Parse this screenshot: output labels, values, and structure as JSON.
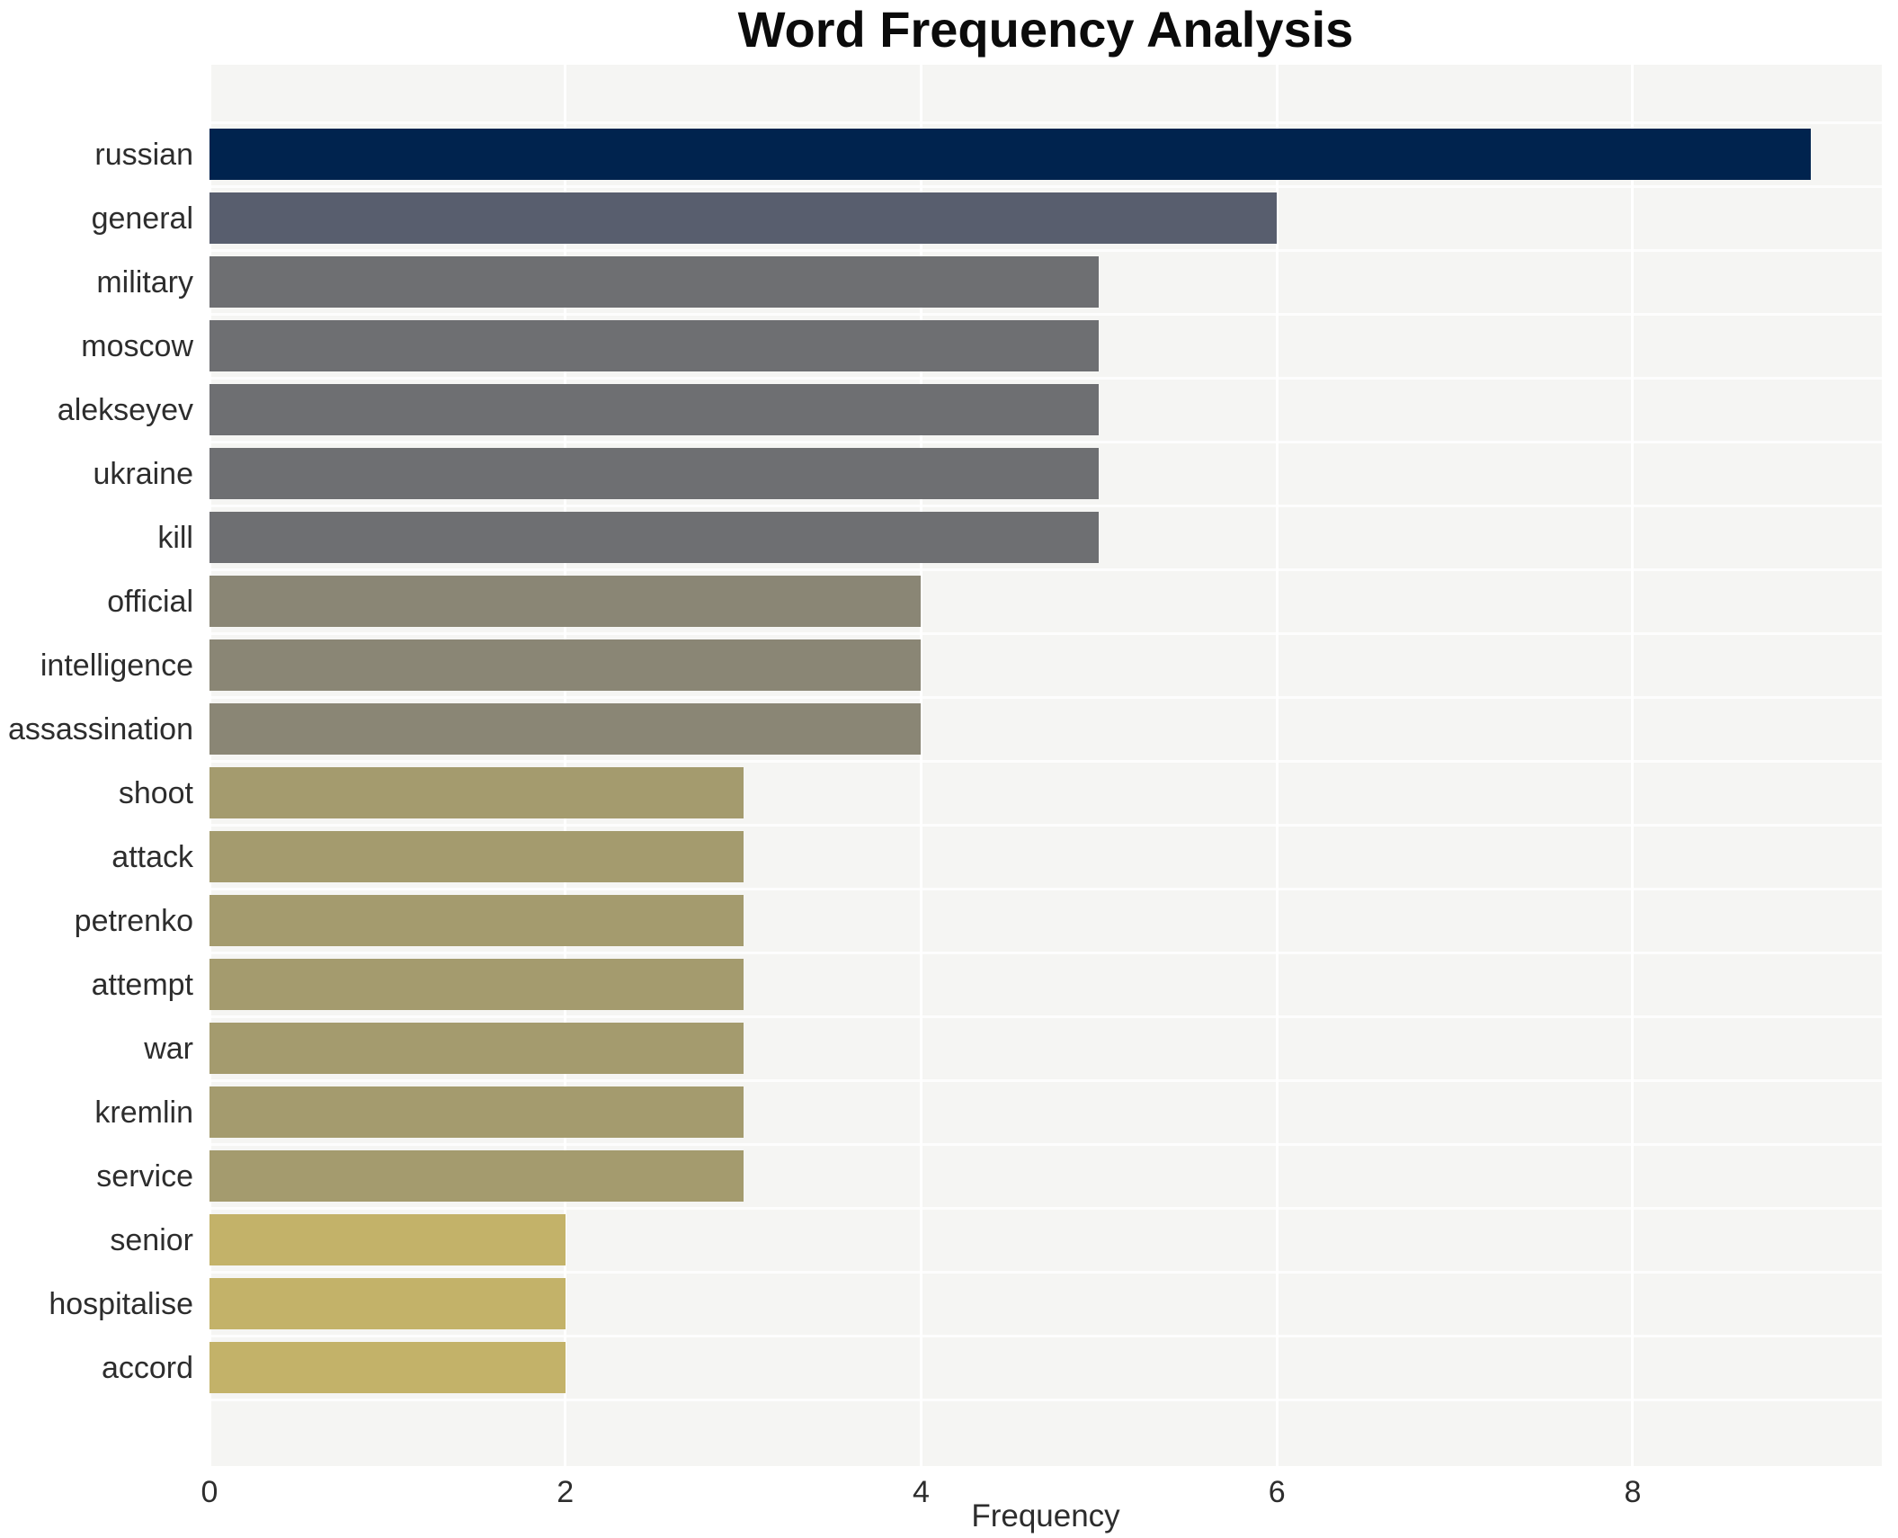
{
  "chart_data": {
    "type": "bar",
    "orientation": "horizontal",
    "title": "Word Frequency Analysis",
    "xlabel": "Frequency",
    "ylabel": "",
    "categories": [
      "russian",
      "general",
      "military",
      "moscow",
      "alekseyev",
      "ukraine",
      "kill",
      "official",
      "intelligence",
      "assassination",
      "shoot",
      "attack",
      "petrenko",
      "attempt",
      "war",
      "kremlin",
      "service",
      "senior",
      "hospitalise",
      "accord"
    ],
    "values": [
      9,
      6,
      5,
      5,
      5,
      5,
      5,
      4,
      4,
      4,
      3,
      3,
      3,
      3,
      3,
      3,
      3,
      2,
      2,
      2
    ],
    "bar_colors": [
      "#00234e",
      "#585e6e",
      "#6e6f72",
      "#6e6f72",
      "#6e6f72",
      "#6e6f72",
      "#6e6f72",
      "#8a8675",
      "#8a8675",
      "#8a8675",
      "#a49b6e",
      "#a49b6e",
      "#a49b6e",
      "#a49b6e",
      "#a49b6e",
      "#a49b6e",
      "#a49b6e",
      "#c3b269",
      "#c3b269",
      "#c3b269"
    ],
    "xlim": [
      0,
      9.4
    ],
    "xticks": [
      0,
      2,
      4,
      6,
      8
    ],
    "xtick_labels": [
      "0",
      "2",
      "4",
      "6",
      "8"
    ],
    "legend": "none",
    "grid": "vertical white gridlines at even ticks on light gray plot background",
    "plot_background": "#f5f5f3",
    "gridline_color": "#ffffff",
    "figure_background": "#ffffff",
    "title_color": "#0b0b0b",
    "tick_label_color": "#2d2d2d"
  }
}
